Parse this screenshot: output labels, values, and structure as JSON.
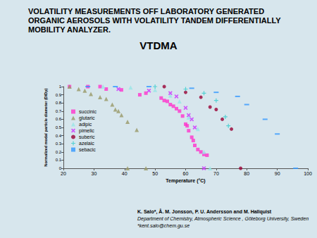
{
  "chart_data": {
    "type": "scatter",
    "title": "VOLATILITY MEASUREMENTS OFF LABORATORY GENERATED ORGANIC AEROSOLS WITH VOLATILITY TANDEM DIFFERENTIALLY MOBILITY ANALYZER.",
    "subtitle": "VTDMA",
    "x_label": "Temperature (°C)",
    "y_label": "Normalized modal particle diameter (D/Dp)",
    "xlim": [
      20,
      100
    ],
    "xticks": [
      20,
      30,
      40,
      50,
      60,
      70,
      80,
      90,
      100
    ],
    "ylim": [
      0,
      1
    ],
    "yticks": [
      0,
      0.1,
      0.2,
      0.3,
      0.4,
      0.5,
      0.6,
      0.7,
      0.8,
      0.9,
      1
    ],
    "grid": false,
    "legend": "left",
    "annotations": [
      "K. Salo*, Å. M. Jonsson, P. U. Andersson and M. Hallquist",
      "Department of Chemistry, Atmospheric Science , Göteborg University, Sweden",
      "*kent.salo@chem.gu.se"
    ],
    "series": [
      {
        "name": "succinic",
        "color": "#ff33cc",
        "marker": "square",
        "x": [
          22,
          28,
          32,
          34,
          39,
          45,
          47,
          52,
          53,
          54,
          55,
          56,
          57,
          58,
          59,
          60,
          60.5,
          61,
          62,
          62.5,
          63,
          64,
          65,
          66,
          67
        ],
        "values": [
          1.0,
          1.0,
          1.0,
          0.97,
          0.96,
          0.9,
          0.92,
          0.86,
          0.83,
          0.82,
          0.78,
          0.76,
          0.73,
          0.7,
          0.64,
          0.54,
          0.52,
          0.46,
          0.38,
          0.34,
          0.28,
          0.23,
          0.2,
          0.17,
          0.16
        ]
      },
      {
        "name": "glutaric",
        "color": "#999966",
        "marker": "triangle",
        "x": [
          22,
          25,
          27,
          29,
          32,
          34,
          36,
          37,
          38,
          39,
          41,
          44,
          41,
          47
        ],
        "values": [
          1.0,
          0.97,
          0.95,
          0.91,
          0.87,
          0.85,
          0.78,
          0.72,
          0.7,
          0.65,
          0.57,
          0.47,
          0.0,
          0.0
        ]
      },
      {
        "name": "adipic",
        "color": "#99e6e6",
        "marker": "triangle",
        "x": [
          33,
          42,
          50,
          55,
          58,
          61,
          64,
          66,
          68
        ],
        "values": [
          1.0,
          0.99,
          0.96,
          0.89,
          0.82,
          0.62,
          0.48,
          0.2,
          0.0
        ]
      },
      {
        "name": "pimelic",
        "color": "#cc33ff",
        "marker": "x",
        "x": [
          38,
          48,
          55,
          57,
          60,
          61,
          62,
          63,
          66
        ],
        "values": [
          0.97,
          0.95,
          0.92,
          0.88,
          0.74,
          0.65,
          0.6,
          0.5,
          0.0
        ]
      },
      {
        "name": "suberic",
        "color": "#990033",
        "marker": "circle",
        "x": [
          53,
          60,
          65,
          68,
          70,
          72,
          75,
          78
        ],
        "values": [
          1.0,
          0.93,
          0.87,
          0.75,
          0.72,
          0.6,
          0.48,
          0.0
        ]
      },
      {
        "name": "azelaic",
        "color": "#33cccc",
        "marker": "asterisk",
        "x": [
          50,
          60,
          66,
          70,
          73,
          74
        ],
        "values": [
          1.0,
          0.97,
          0.92,
          0.83,
          0.63,
          0.52
        ]
      },
      {
        "name": "sebacic",
        "color": "#3399ff",
        "marker": "dash",
        "x": [
          28,
          37,
          48,
          62,
          70,
          77,
          80,
          86,
          90,
          96
        ],
        "values": [
          1.0,
          1.0,
          1.0,
          0.98,
          0.93,
          0.88,
          0.78,
          0.6,
          0.42,
          0.0
        ]
      }
    ]
  }
}
